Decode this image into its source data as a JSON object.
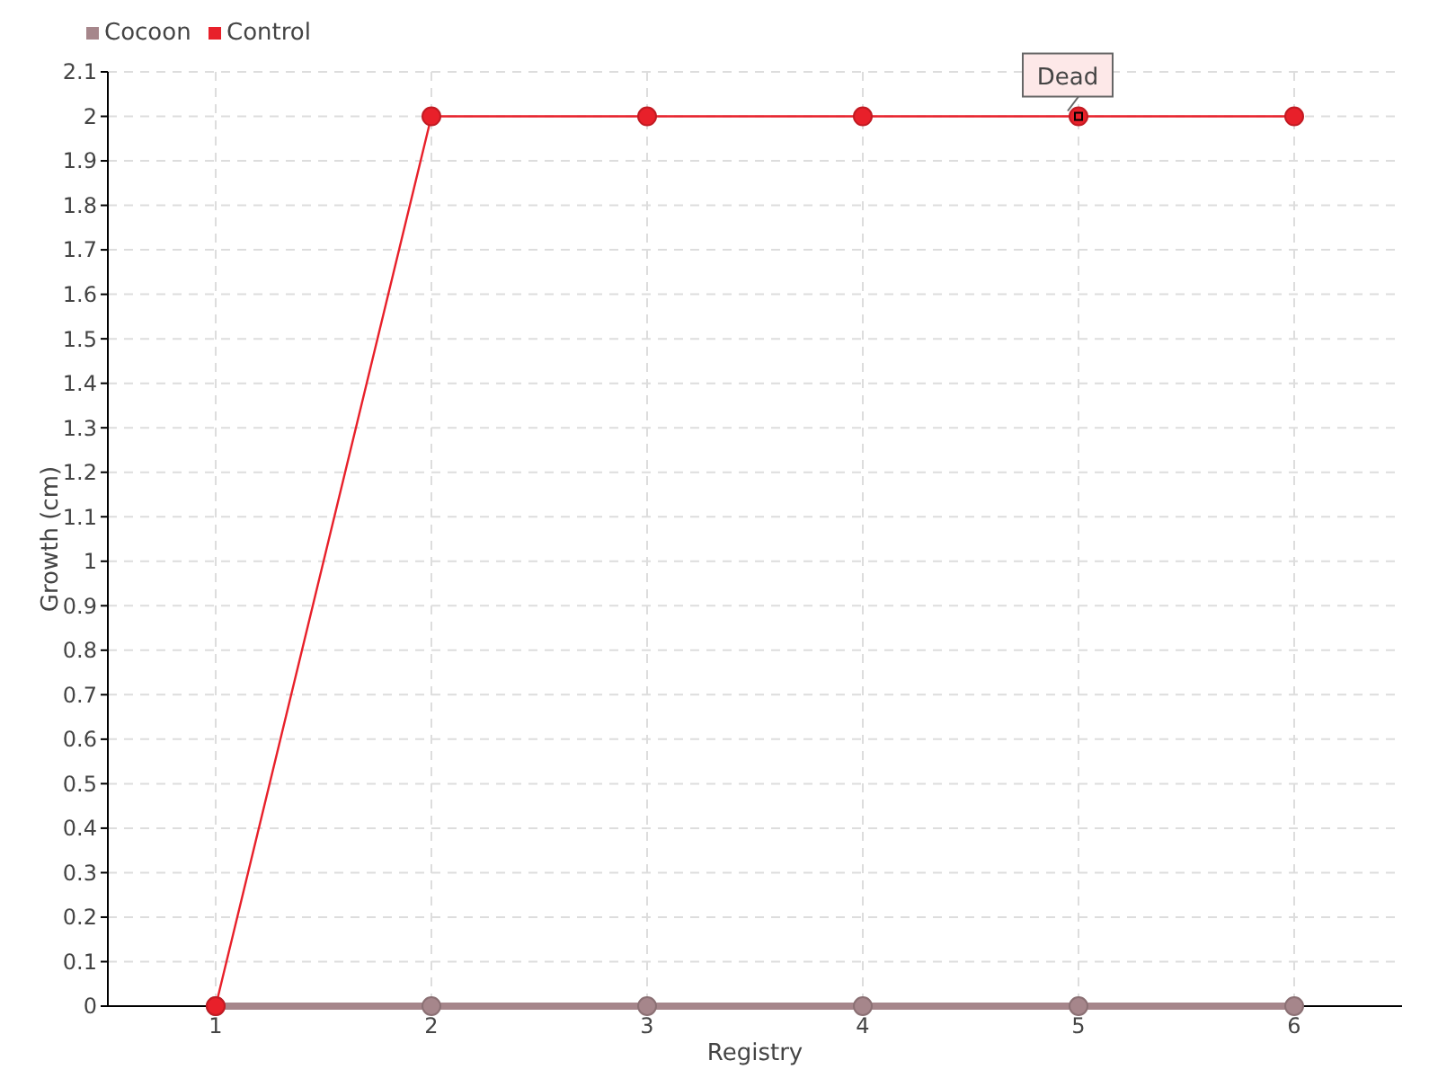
{
  "chart_data": {
    "type": "line",
    "xlabel": "Registry",
    "ylabel": "Growth (cm)",
    "categories": [
      "1",
      "2",
      "3",
      "4",
      "5",
      "6"
    ],
    "series": [
      {
        "name": "Cocoon",
        "color": "#a6868b",
        "values": [
          0,
          0,
          0,
          0,
          0,
          0
        ]
      },
      {
        "name": "Control",
        "color": "#e8202a",
        "values": [
          0,
          2,
          2,
          2,
          2,
          2
        ]
      }
    ],
    "ylim": [
      0,
      2.1
    ],
    "yticks": [
      0,
      0.1,
      0.2,
      0.3,
      0.4,
      0.5,
      0.6,
      0.7,
      0.8,
      0.9,
      1,
      1.1,
      1.2,
      1.3,
      1.4,
      1.5,
      1.6,
      1.7,
      1.8,
      1.9,
      2,
      2.1
    ],
    "grid": true,
    "legend": "top left",
    "marker": "circle",
    "annotations": [
      {
        "text": "Dead",
        "x": "5",
        "y": 2
      }
    ]
  }
}
